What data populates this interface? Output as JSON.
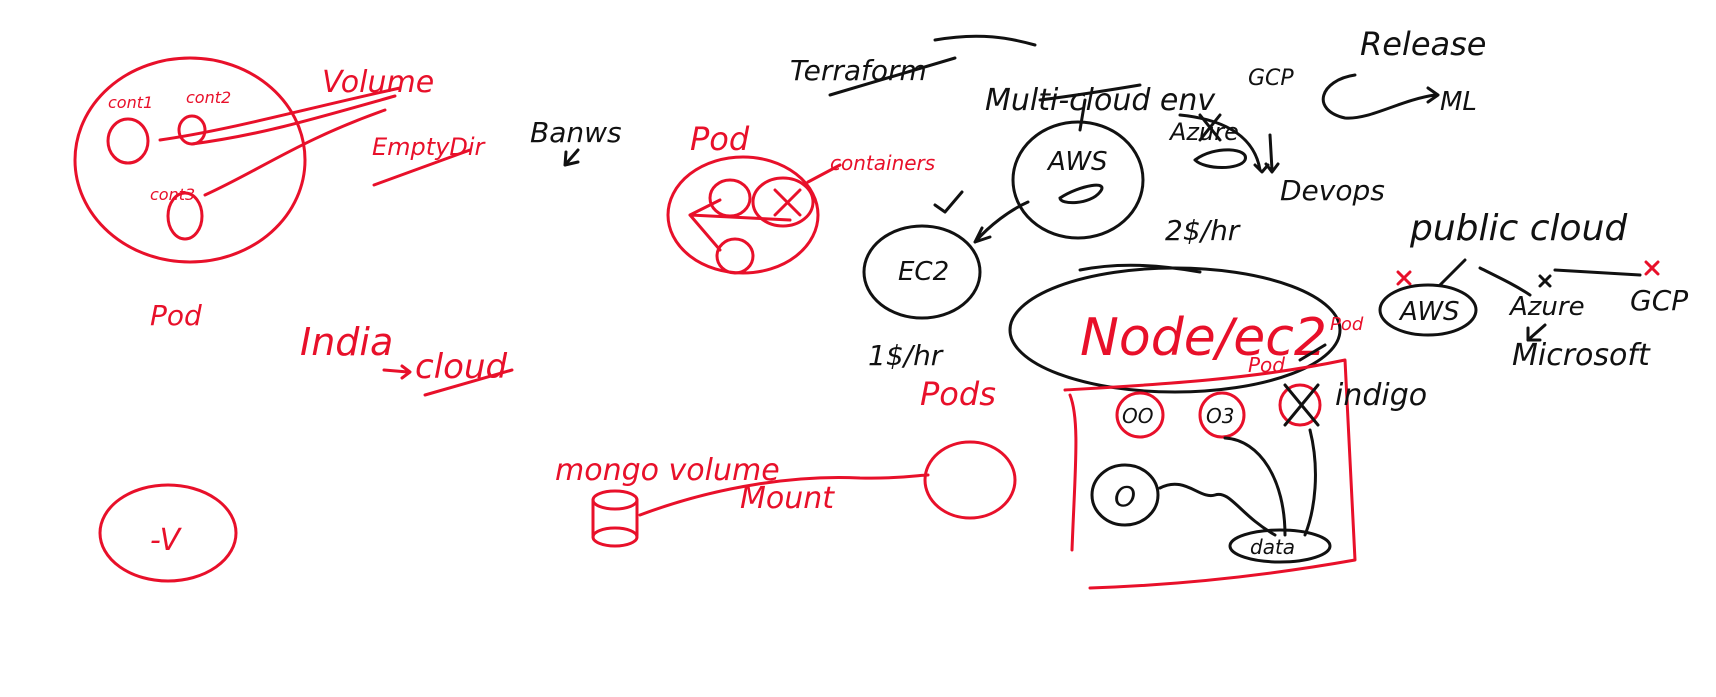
{
  "colors": {
    "red_ink": "#e8102a",
    "black_ink": "#111111",
    "background": "#ffffff"
  },
  "labels": {
    "cont1": "cont1",
    "cont2": "cont2",
    "cont3": "cont3",
    "volume": "Volume",
    "emptydir": "EmptyDir",
    "pod": "Pod",
    "banws": "Banws",
    "india": "India",
    "cloud": "cloud",
    "pod2": "Pod",
    "containers": "containers",
    "terraform": "Terraform",
    "multi_cloud": "Multi-cloud env",
    "gcp": "GCP",
    "release": "Release",
    "ml": "ML",
    "aws": "AWS",
    "azure": "Azure",
    "devops": "Devops",
    "price_aws": "2$/hr",
    "ec2": "EC2",
    "price_ec2": "1$/hr",
    "pods": "Pods",
    "node_ec2": "Node/ec2",
    "pod_small": "Pod",
    "pod_small2": "Pod",
    "o1": "OO",
    "o2": "O3",
    "indigo": "indigo",
    "data": "data",
    "public_cloud": "public cloud",
    "aws2": "AWS",
    "azure2": "Azure",
    "gcp2": "GCP",
    "microsoft": "Microsoft",
    "mongo_volume": "mongo volume",
    "mount": "Mount",
    "v": "-V"
  }
}
